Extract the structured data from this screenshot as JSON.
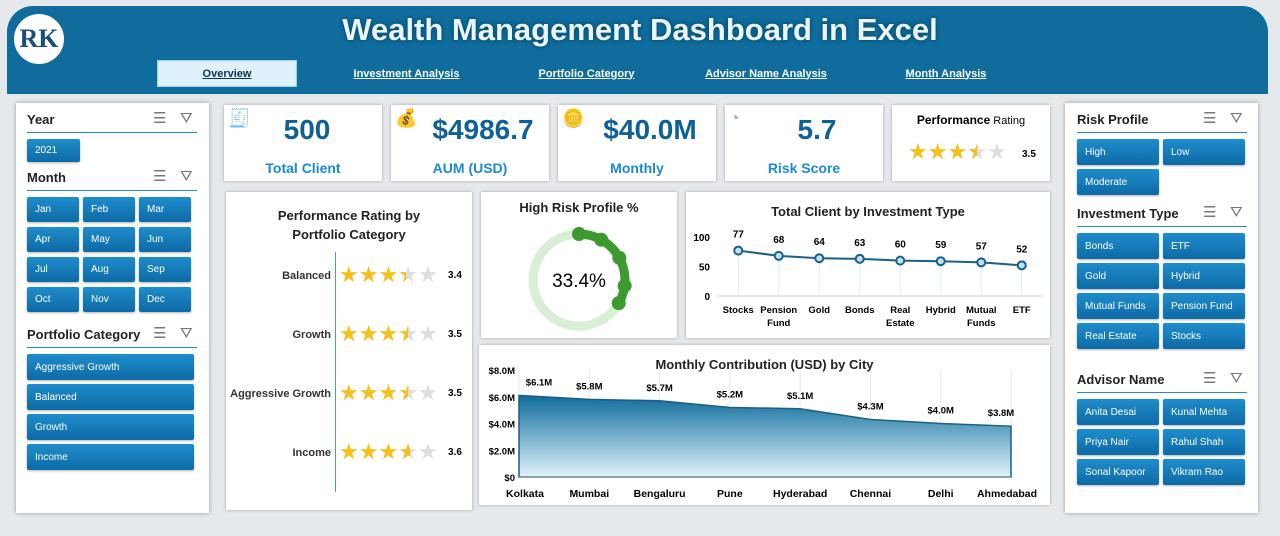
{
  "header": {
    "title": "Wealth Management Dashboard in Excel",
    "logo": "RK",
    "tabs": [
      "Overview",
      "Investment  Analysis",
      "Portfolio Category",
      "Advisor Name Analysis",
      "Month Analysis"
    ],
    "active_tab": 0
  },
  "filters_left": {
    "year": {
      "label": "Year",
      "items": [
        "2021"
      ]
    },
    "month": {
      "label": "Month",
      "items": [
        "Jan",
        "Feb",
        "Mar",
        "Apr",
        "May",
        "Jun",
        "Jul",
        "Aug",
        "Sep",
        "Oct",
        "Nov",
        "Dec"
      ]
    },
    "portfolio": {
      "label": "Portfolio Category",
      "items": [
        "Aggressive Growth",
        "Balanced",
        "Growth",
        "Income"
      ]
    }
  },
  "filters_right": {
    "risk": {
      "label": "Risk Profile",
      "items": [
        "High",
        "Low",
        "Moderate"
      ]
    },
    "investment": {
      "label": "Investment Type",
      "items": [
        "Bonds",
        "ETF",
        "Gold",
        "Hybrid",
        "Mutual Funds",
        "Pension Fund",
        "Real Estate",
        "Stocks"
      ]
    },
    "advisor": {
      "label": "Advisor Name",
      "items": [
        "Anita Desai",
        "Kunal Mehta",
        "Priya Nair",
        "Rahul Shah",
        "Sonal Kapoor",
        "Vikram Rao"
      ]
    }
  },
  "kpis": [
    {
      "value": "500",
      "label": "Total Client",
      "icon": "document-icon"
    },
    {
      "value": "$4986.7",
      "label": "AUM (USD)",
      "icon": "money-bag-icon"
    },
    {
      "value": "$40.0M",
      "label": "Monthly",
      "icon": "coins-icon"
    },
    {
      "value": "5.7",
      "label": "Risk Score",
      "icon": "gauge-icon"
    }
  ],
  "performance_rating": {
    "title_bold": "Performance",
    "title_rest": " Rating",
    "value": "3.5",
    "stars": 3.5
  },
  "colors": {
    "header": "#0f6c9c",
    "accent": "#1a8bd0",
    "star": "#f5c01a",
    "gauge": "#3c9a2e"
  },
  "chart_data": [
    {
      "type": "table",
      "title": "Performance Rating by Portfolio Category",
      "categories": [
        "Balanced",
        "Growth",
        "Aggressive Growth",
        "Income"
      ],
      "values": [
        3.4,
        3.5,
        3.5,
        3.6
      ],
      "value_labels": [
        "3.4",
        "3.5",
        "3.5",
        "3.6"
      ],
      "max": 5
    },
    {
      "type": "pie",
      "title": "High Risk Profile %",
      "value": 33.4,
      "label": "33.4%"
    },
    {
      "type": "line",
      "title": "Total Client by Investment Type",
      "categories": [
        "Stocks",
        "Pension Fund",
        "Gold",
        "Bonds",
        "Real Estate",
        "Hybrid",
        "Mutual Funds",
        "ETF"
      ],
      "values": [
        77,
        68,
        64,
        63,
        60,
        59,
        57,
        52
      ],
      "ylim": [
        0,
        100
      ],
      "yticks": [
        "0",
        "50",
        "100"
      ]
    },
    {
      "type": "area",
      "title": "Monthly Contribution (USD) by City",
      "categories": [
        "Kolkata",
        "Mumbai",
        "Bengaluru",
        "Pune",
        "Hyderabad",
        "Chennai",
        "Delhi",
        "Ahmedabad"
      ],
      "values": [
        6.1,
        5.8,
        5.7,
        5.2,
        5.1,
        4.3,
        4.0,
        3.8
      ],
      "value_labels": [
        "$6.1M",
        "$5.8M",
        "$5.7M",
        "$5.2M",
        "$5.1M",
        "$4.3M",
        "$4.0M",
        "$3.8M"
      ],
      "ylim": [
        0,
        8
      ],
      "yticks": [
        "$0",
        "$2.0M",
        "$4.0M",
        "$6.0M",
        "$8.0M"
      ]
    }
  ]
}
